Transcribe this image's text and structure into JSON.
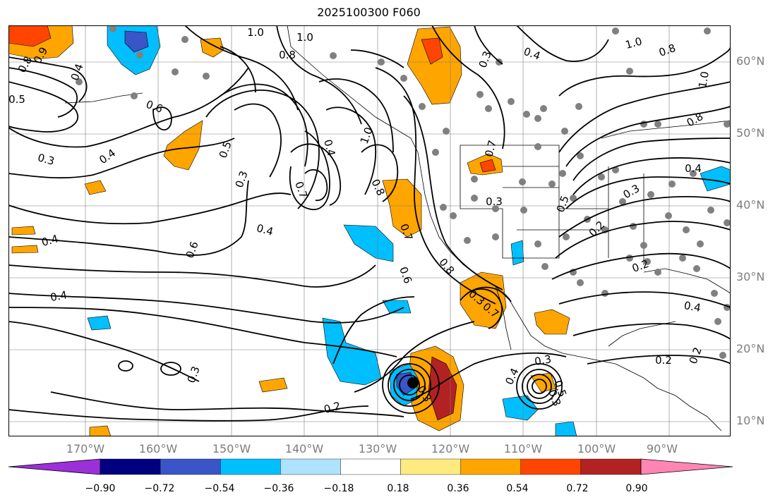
{
  "title": "2025100300 F060",
  "lat_labels": [
    "60°N",
    "50°N",
    "40°N",
    "30°N",
    "20°N",
    "10°N"
  ],
  "lon_labels": [
    "170°W",
    "160°W",
    "150°W",
    "140°W",
    "130°W",
    "120°W",
    "110°W",
    "100°W",
    "90°W"
  ],
  "colorbar": {
    "ticks": [
      "−0.90",
      "−0.72",
      "−0.54",
      "−0.36",
      "−0.18",
      "0.18",
      "0.36",
      "0.54",
      "0.72",
      "0.90"
    ],
    "colors": [
      "#9b30d9",
      "#000080",
      "#3a55c8",
      "#00bfff",
      "#aee3ff",
      "#ffffff",
      "#ffea80",
      "#ffa500",
      "#ff4500",
      "#b22222",
      "#ff85b3"
    ]
  },
  "contour_labels": [
    {
      "text": "0.9",
      "cls": "c1"
    },
    {
      "text": "0.8",
      "cls": "c2"
    },
    {
      "text": "0.4",
      "cls": "c3"
    },
    {
      "text": "0.5",
      "cls": "c4"
    },
    {
      "text": "1.0",
      "cls": "c5"
    },
    {
      "text": "1.0",
      "cls": "c6"
    },
    {
      "text": "0.8",
      "cls": "c7"
    },
    {
      "text": "0.6",
      "cls": "c8"
    },
    {
      "text": "0.3",
      "cls": "c9"
    },
    {
      "text": "0.4",
      "cls": "c10"
    },
    {
      "text": "0.5",
      "cls": "c11"
    },
    {
      "text": "0.3",
      "cls": "c12"
    },
    {
      "text": "0.7",
      "cls": "c13"
    },
    {
      "text": "0.4",
      "cls": "c14"
    },
    {
      "text": "0.4",
      "cls": "c15"
    },
    {
      "text": "0.6",
      "cls": "c16"
    },
    {
      "text": "0.4",
      "cls": "c17"
    },
    {
      "text": "0.4",
      "cls": "c18"
    },
    {
      "text": "1.0",
      "cls": "c19"
    },
    {
      "text": "0.8",
      "cls": "c20"
    },
    {
      "text": "0.7",
      "cls": "c21"
    },
    {
      "text": "0.6",
      "cls": "c22"
    },
    {
      "text": "0.8",
      "cls": "c23"
    },
    {
      "text": "0.3",
      "cls": "c24"
    },
    {
      "text": "0.4",
      "cls": "c25"
    },
    {
      "text": "1.0",
      "cls": "c26"
    },
    {
      "text": "0.8",
      "cls": "c27"
    },
    {
      "text": "1.0",
      "cls": "c28"
    },
    {
      "text": "0.8",
      "cls": "c29"
    },
    {
      "text": "0.7",
      "cls": "c30"
    },
    {
      "text": "0.3",
      "cls": "c31"
    },
    {
      "text": "0.5",
      "cls": "c32"
    },
    {
      "text": "0.2",
      "cls": "c33"
    },
    {
      "text": "0.3",
      "cls": "c34"
    },
    {
      "text": "0.4",
      "cls": "c35"
    },
    {
      "text": "0.2",
      "cls": "c36"
    },
    {
      "text": "0.2",
      "cls": "c37"
    },
    {
      "text": "0.3",
      "cls": "c38"
    },
    {
      "text": "0.4",
      "cls": "c39"
    },
    {
      "text": "0.2",
      "cls": "c40"
    },
    {
      "text": "0.3",
      "cls": "c41"
    },
    {
      "text": "0.4",
      "cls": "c42"
    },
    {
      "text": "0.5",
      "cls": "c43"
    },
    {
      "text": "0.3",
      "cls": "c44"
    },
    {
      "text": "0.2",
      "cls": "c45"
    },
    {
      "text": "0.3",
      "cls": "c46"
    },
    {
      "text": "0.7",
      "cls": "c47"
    },
    {
      "text": "0.3",
      "cls": "c48"
    }
  ]
}
